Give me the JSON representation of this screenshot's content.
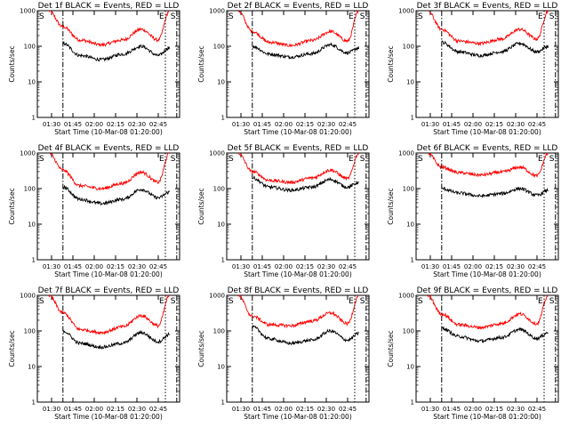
{
  "chart_data": [
    {
      "type": "line",
      "title": "Det 1f BLACK = Events, RED = LLD",
      "xlabel": "Start Time (10-Mar-08 01:20:00)",
      "ylabel": "Counts/sec",
      "x_ticks": [
        "01:30",
        "01:45",
        "02:00",
        "02:15",
        "02:30",
        "02:45"
      ],
      "y_ticks": [
        "1",
        "10",
        "100",
        "1000"
      ],
      "yscale": "log",
      "ylim": [
        1,
        1000
      ],
      "markers": [
        {
          "label": "S",
          "x": "01:20"
        },
        {
          "label": "E",
          "x": "02:50"
        },
        {
          "label": "S",
          "x": "02:58"
        }
      ],
      "series": [
        {
          "color": "#ff0000",
          "x": [
            "01:28",
            "01:38",
            "01:50",
            "02:05",
            "02:20",
            "02:33",
            "02:45",
            "02:53"
          ],
          "y": [
            1000,
            350,
            150,
            110,
            150,
            300,
            150,
            1000
          ]
        },
        {
          "color": "#000000",
          "x": [
            "01:38",
            "01:50",
            "02:05",
            "02:20",
            "02:33",
            "02:45",
            "02:53"
          ],
          "y": [
            120,
            55,
            42,
            60,
            100,
            55,
            90
          ]
        }
      ]
    },
    {
      "type": "line",
      "title": "Det 2f BLACK = Events, RED = LLD",
      "xlabel": "Start Time (10-Mar-08 01:20:00)",
      "ylabel": "Counts/sec",
      "x_ticks": [
        "01:30",
        "01:45",
        "02:00",
        "02:15",
        "02:30",
        "02:45"
      ],
      "y_ticks": [
        "1",
        "10",
        "100",
        "1000"
      ],
      "yscale": "log",
      "ylim": [
        1,
        1000
      ],
      "markers": [
        {
          "label": "S",
          "x": "01:20"
        },
        {
          "label": "E",
          "x": "02:50"
        },
        {
          "label": "S",
          "x": "02:58"
        }
      ],
      "series": [
        {
          "color": "#ff0000",
          "x": [
            "01:28",
            "01:38",
            "01:50",
            "02:05",
            "02:20",
            "02:33",
            "02:45",
            "02:53"
          ],
          "y": [
            1000,
            260,
            130,
            105,
            145,
            260,
            140,
            1000
          ]
        },
        {
          "color": "#000000",
          "x": [
            "01:38",
            "01:50",
            "02:05",
            "02:20",
            "02:33",
            "02:45",
            "02:53"
          ],
          "y": [
            100,
            60,
            50,
            62,
            110,
            65,
            90
          ]
        }
      ]
    },
    {
      "type": "line",
      "title": "Det 3f BLACK = Events, RED = LLD",
      "xlabel": "Start Time (10-Mar-08 01:20:00)",
      "ylabel": "Counts/sec",
      "x_ticks": [
        "01:30",
        "01:45",
        "02:00",
        "02:15",
        "02:30",
        "02:45"
      ],
      "y_ticks": [
        "1",
        "10",
        "100",
        "1000"
      ],
      "yscale": "log",
      "ylim": [
        1,
        1000
      ],
      "markers": [
        {
          "label": "S",
          "x": "01:20"
        },
        {
          "label": "E",
          "x": "02:50"
        },
        {
          "label": "S",
          "x": "02:58"
        }
      ],
      "series": [
        {
          "color": "#ff0000",
          "x": [
            "01:28",
            "01:38",
            "01:50",
            "02:05",
            "02:20",
            "02:33",
            "02:45",
            "02:53"
          ],
          "y": [
            1000,
            300,
            140,
            120,
            160,
            300,
            160,
            1000
          ]
        },
        {
          "color": "#000000",
          "x": [
            "01:38",
            "01:50",
            "02:05",
            "02:20",
            "02:33",
            "02:45",
            "02:53"
          ],
          "y": [
            130,
            70,
            55,
            70,
            120,
            70,
            100
          ]
        }
      ]
    },
    {
      "type": "line",
      "title": "Det 4f BLACK = Events, RED = LLD",
      "xlabel": "Start Time (10-Mar-08 01:20:00)",
      "ylabel": "Counts/sec",
      "x_ticks": [
        "01:30",
        "01:45",
        "02:00",
        "02:15",
        "02:30",
        "02:45"
      ],
      "y_ticks": [
        "1",
        "10",
        "100",
        "1000"
      ],
      "yscale": "log",
      "ylim": [
        1,
        1000
      ],
      "markers": [
        {
          "label": "S",
          "x": "01:20"
        },
        {
          "label": "E",
          "x": "02:50"
        },
        {
          "label": "S",
          "x": "02:58"
        }
      ],
      "series": [
        {
          "color": "#ff0000",
          "x": [
            "01:28",
            "01:38",
            "01:50",
            "02:05",
            "02:20",
            "02:33",
            "02:45",
            "02:53"
          ],
          "y": [
            1000,
            330,
            120,
            100,
            140,
            290,
            150,
            1000
          ]
        },
        {
          "color": "#000000",
          "x": [
            "01:38",
            "01:50",
            "02:05",
            "02:20",
            "02:33",
            "02:45",
            "02:53"
          ],
          "y": [
            110,
            50,
            38,
            50,
            95,
            55,
            80
          ]
        }
      ]
    },
    {
      "type": "line",
      "title": "Det 5f BLACK = Events, RED = LLD",
      "xlabel": "Start Time (10-Mar-08 01:20:00)",
      "ylabel": "Counts/sec",
      "x_ticks": [
        "01:30",
        "01:45",
        "02:00",
        "02:15",
        "02:30",
        "02:45"
      ],
      "y_ticks": [
        "1",
        "10",
        "100",
        "1000"
      ],
      "yscale": "log",
      "ylim": [
        1,
        1000
      ],
      "markers": [
        {
          "label": "S",
          "x": "01:20"
        },
        {
          "label": "E",
          "x": "02:50"
        },
        {
          "label": "S",
          "x": "02:58"
        }
      ],
      "series": [
        {
          "color": "#ff0000",
          "x": [
            "01:28",
            "01:38",
            "01:50",
            "02:05",
            "02:20",
            "02:33",
            "02:45",
            "02:53"
          ],
          "y": [
            1000,
            300,
            170,
            150,
            200,
            330,
            190,
            1000
          ]
        },
        {
          "color": "#000000",
          "x": [
            "01:38",
            "01:50",
            "02:05",
            "02:20",
            "02:33",
            "02:45",
            "02:53"
          ],
          "y": [
            200,
            110,
            90,
            110,
            180,
            110,
            150
          ]
        }
      ]
    },
    {
      "type": "line",
      "title": "Det 6f BLACK = Events, RED = LLD",
      "xlabel": "Start Time (10-Mar-08 01:20:00)",
      "ylabel": "Counts/sec",
      "x_ticks": [
        "01:30",
        "01:45",
        "02:00",
        "02:15",
        "02:30",
        "02:45"
      ],
      "y_ticks": [
        "1",
        "10",
        "100",
        "1000"
      ],
      "yscale": "log",
      "ylim": [
        1,
        1000
      ],
      "markers": [
        {
          "label": "S",
          "x": "01:20"
        },
        {
          "label": "E",
          "x": "02:50"
        },
        {
          "label": "S",
          "x": "02:58"
        }
      ],
      "series": [
        {
          "color": "#ff0000",
          "x": [
            "01:28",
            "01:38",
            "01:50",
            "02:05",
            "02:20",
            "02:33",
            "02:45",
            "02:53"
          ],
          "y": [
            1000,
            400,
            280,
            240,
            290,
            400,
            230,
            1000
          ]
        },
        {
          "color": "#000000",
          "x": [
            "01:38",
            "01:50",
            "02:05",
            "02:20",
            "02:33",
            "02:45",
            "02:53"
          ],
          "y": [
            100,
            75,
            62,
            72,
            100,
            65,
            90
          ]
        }
      ]
    },
    {
      "type": "line",
      "title": "Det 7f BLACK = Events, RED = LLD",
      "xlabel": "Start Time (10-Mar-08 01:20:00)",
      "ylabel": "Counts/sec",
      "x_ticks": [
        "01:30",
        "01:45",
        "02:00",
        "02:15",
        "02:30",
        "02:45"
      ],
      "y_ticks": [
        "1",
        "10",
        "100",
        "1000"
      ],
      "yscale": "log",
      "ylim": [
        1,
        1000
      ],
      "markers": [
        {
          "label": "S",
          "x": "01:20"
        },
        {
          "label": "E",
          "x": "02:50"
        },
        {
          "label": "S",
          "x": "02:58"
        }
      ],
      "series": [
        {
          "color": "#ff0000",
          "x": [
            "01:28",
            "01:38",
            "01:50",
            "02:05",
            "02:20",
            "02:33",
            "02:45",
            "02:53"
          ],
          "y": [
            1000,
            320,
            110,
            90,
            130,
            270,
            140,
            1000
          ]
        },
        {
          "color": "#000000",
          "x": [
            "01:38",
            "01:50",
            "02:05",
            "02:20",
            "02:33",
            "02:45",
            "02:53"
          ],
          "y": [
            100,
            45,
            35,
            45,
            90,
            50,
            80
          ]
        }
      ]
    },
    {
      "type": "line",
      "title": "Det 8f BLACK = Events, RED = LLD",
      "xlabel": "Start Time (10-Mar-08 01:20:00)",
      "ylabel": "Counts/sec",
      "x_ticks": [
        "01:30",
        "01:45",
        "02:00",
        "02:15",
        "02:30",
        "02:45"
      ],
      "y_ticks": [
        "1",
        "10",
        "100",
        "1000"
      ],
      "yscale": "log",
      "ylim": [
        1,
        1000
      ],
      "markers": [
        {
          "label": "S",
          "x": "01:20"
        },
        {
          "label": "E",
          "x": "02:50"
        },
        {
          "label": "S",
          "x": "02:58"
        }
      ],
      "series": [
        {
          "color": "#ff0000",
          "x": [
            "01:28",
            "01:38",
            "01:50",
            "02:05",
            "02:20",
            "02:33",
            "02:45",
            "02:53"
          ],
          "y": [
            1000,
            260,
            150,
            140,
            190,
            320,
            160,
            1000
          ]
        },
        {
          "color": "#000000",
          "x": [
            "01:38",
            "01:50",
            "02:05",
            "02:20",
            "02:33",
            "02:45",
            "02:53"
          ],
          "y": [
            130,
            60,
            45,
            55,
            100,
            55,
            85
          ]
        }
      ]
    },
    {
      "type": "line",
      "title": "Det 9f BLACK = Events, RED = LLD",
      "xlabel": "Start Time (10-Mar-08 01:20:00)",
      "ylabel": "Counts/sec",
      "x_ticks": [
        "01:30",
        "01:45",
        "02:00",
        "02:15",
        "02:30",
        "02:45"
      ],
      "y_ticks": [
        "1",
        "10",
        "100",
        "1000"
      ],
      "yscale": "log",
      "ylim": [
        1,
        1000
      ],
      "markers": [
        {
          "label": "S",
          "x": "01:20"
        },
        {
          "label": "E",
          "x": "02:50"
        },
        {
          "label": "S",
          "x": "02:58"
        }
      ],
      "series": [
        {
          "color": "#ff0000",
          "x": [
            "01:28",
            "01:38",
            "01:50",
            "02:05",
            "02:20",
            "02:33",
            "02:45",
            "02:53"
          ],
          "y": [
            1000,
            300,
            150,
            125,
            160,
            300,
            160,
            1000
          ]
        },
        {
          "color": "#000000",
          "x": [
            "01:38",
            "01:50",
            "02:05",
            "02:20",
            "02:33",
            "02:45",
            "02:53"
          ],
          "y": [
            120,
            70,
            52,
            65,
            110,
            62,
            90
          ]
        }
      ]
    }
  ]
}
